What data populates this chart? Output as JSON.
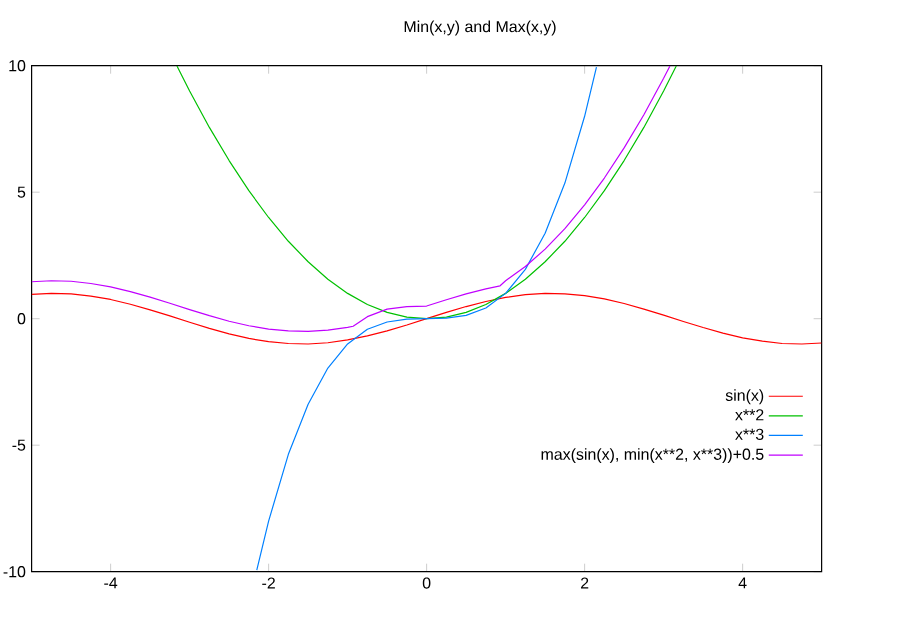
{
  "chart_data": {
    "type": "line",
    "title": "Min(x,y) and Max(x,y)",
    "xlim": [
      -5,
      5
    ],
    "ylim": [
      -10,
      10
    ],
    "xticks": [
      -4,
      -2,
      0,
      2,
      4
    ],
    "yticks": [
      -10,
      -5,
      0,
      5,
      10
    ],
    "grid": false,
    "legend": "bottom right",
    "marker": "none",
    "line_style": "solid",
    "series": [
      {
        "name": "sin(x)",
        "color": "#ff0000",
        "x": [
          -5,
          -4.75,
          -4.5,
          -4.25,
          -4,
          -3.75,
          -3.5,
          -3.25,
          -3,
          -2.75,
          -2.5,
          -2.25,
          -2,
          -1.75,
          -1.5,
          -1.25,
          -1,
          -0.75,
          -0.5,
          -0.25,
          0,
          0.25,
          0.5,
          0.75,
          1,
          1.25,
          1.5,
          1.75,
          2,
          2.25,
          2.5,
          2.75,
          3,
          3.25,
          3.5,
          3.75,
          4,
          4.25,
          4.5,
          4.75,
          5
        ],
        "values": [
          0.96,
          1.0,
          0.98,
          0.89,
          0.76,
          0.57,
          0.35,
          0.11,
          -0.14,
          -0.38,
          -0.6,
          -0.78,
          -0.91,
          -0.98,
          -1.0,
          -0.95,
          -0.84,
          -0.68,
          -0.48,
          -0.25,
          0,
          0.25,
          0.48,
          0.68,
          0.84,
          0.95,
          1.0,
          0.98,
          0.91,
          0.78,
          0.6,
          0.38,
          0.14,
          -0.11,
          -0.35,
          -0.57,
          -0.76,
          -0.89,
          -0.98,
          -1.0,
          -0.96
        ]
      },
      {
        "name": "x**2",
        "color": "#00c000",
        "x": [
          -3.16,
          -3,
          -2.75,
          -2.5,
          -2.25,
          -2,
          -1.75,
          -1.5,
          -1.25,
          -1,
          -0.75,
          -0.5,
          -0.25,
          0,
          0.25,
          0.5,
          0.75,
          1,
          1.25,
          1.5,
          1.75,
          2,
          2.25,
          2.5,
          2.75,
          3,
          3.16
        ],
        "values": [
          9.99,
          9,
          7.56,
          6.25,
          5.06,
          4,
          3.06,
          2.25,
          1.56,
          1,
          0.56,
          0.25,
          0.06,
          0,
          0.06,
          0.25,
          0.56,
          1,
          1.56,
          2.25,
          3.06,
          4,
          5.06,
          6.25,
          7.56,
          9,
          9.99
        ]
      },
      {
        "name": "x**3",
        "color": "#0080ff",
        "x": [
          -2.15,
          -2,
          -1.75,
          -1.5,
          -1.25,
          -1,
          -0.75,
          -0.5,
          -0.25,
          0,
          0.25,
          0.5,
          0.75,
          1,
          1.25,
          1.5,
          1.75,
          2,
          2.15
        ],
        "values": [
          -9.94,
          -8,
          -5.36,
          -3.38,
          -1.95,
          -1,
          -0.42,
          -0.13,
          -0.02,
          0,
          0.02,
          0.13,
          0.42,
          1,
          1.95,
          3.38,
          5.36,
          8,
          9.94
        ]
      },
      {
        "name": "max(sin(x), min(x**2, x**3))+0.5",
        "color": "#c000ff",
        "x": [
          -5,
          -4.75,
          -4.5,
          -4.25,
          -4,
          -3.75,
          -3.5,
          -3.25,
          -3,
          -2.75,
          -2.5,
          -2.25,
          -2,
          -1.75,
          -1.5,
          -1.25,
          -1,
          -0.93,
          -0.75,
          -0.5,
          -0.25,
          0,
          0.25,
          0.5,
          0.75,
          0.93,
          1,
          1.25,
          1.5,
          1.75,
          2,
          2.25,
          2.5,
          2.75,
          3,
          3.08
        ],
        "values": [
          1.46,
          1.5,
          1.48,
          1.39,
          1.26,
          1.07,
          0.85,
          0.61,
          0.36,
          0.12,
          -0.1,
          -0.28,
          -0.41,
          -0.48,
          -0.5,
          -0.45,
          -0.34,
          -0.3,
          0.08,
          0.38,
          0.48,
          0.5,
          0.75,
          0.98,
          1.18,
          1.3,
          1.5,
          2.06,
          2.75,
          3.56,
          4.5,
          5.56,
          6.75,
          8.06,
          9.5,
          9.99
        ]
      }
    ]
  }
}
